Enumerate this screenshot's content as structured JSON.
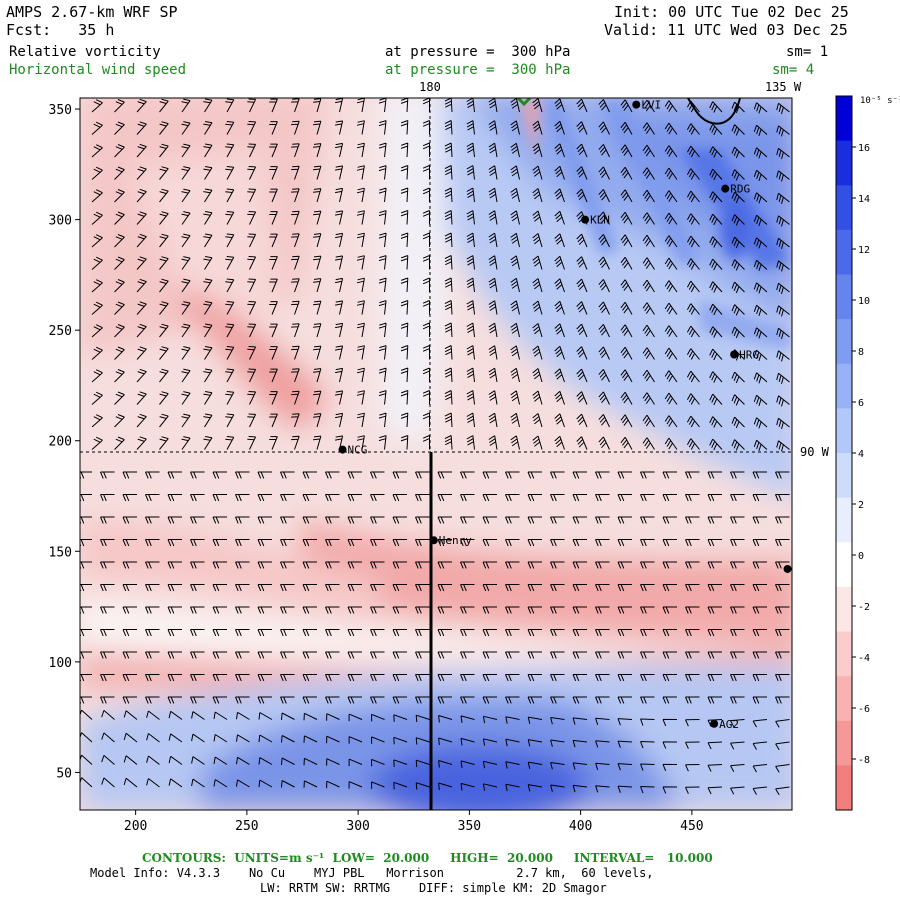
{
  "header": {
    "model": "AMPS 2.67-km WRF SP",
    "fcst": "Fcst:   35 h",
    "init": "Init: 00 UTC Tue 02 Dec 25",
    "valid": "Valid: 11 UTC Wed 03 Dec 25",
    "field1_name": "Relative vorticity",
    "field1_level": "at pressure =  300 hPa",
    "field1_sm": "sm= 1",
    "field2_name": "Horizontal wind speed",
    "field2_level": "at pressure =  300 hPa",
    "field2_sm": "sm= 4"
  },
  "map": {
    "x_ticks": [
      "200",
      "250",
      "300",
      "350",
      "400",
      "450"
    ],
    "y_ticks": [
      "50",
      "100",
      "150",
      "200",
      "250",
      "300",
      "350"
    ],
    "lon_label_180": "180",
    "lon_label_135w": "135 W",
    "lat_label_90w": "90 W",
    "stations": [
      {
        "id": "LVI",
        "x": 425,
        "y": 352
      },
      {
        "id": "RDG",
        "x": 465,
        "y": 314
      },
      {
        "id": "KLN",
        "x": 402,
        "y": 300
      },
      {
        "id": "HRG",
        "x": 469,
        "y": 239
      },
      {
        "id": "NCG",
        "x": 293,
        "y": 196
      },
      {
        "id": "Henry",
        "x": 334,
        "y": 155
      },
      {
        "id": "",
        "x": 493,
        "y": 142
      },
      {
        "id": "AG2",
        "x": 460,
        "y": 72
      }
    ]
  },
  "colorbar": {
    "unit": "10⁻⁵ s⁻¹",
    "ticks": [
      "16",
      "14",
      "12",
      "10",
      "8",
      "6",
      "4",
      "2",
      "0",
      "-2",
      "-4",
      "-6",
      "-8"
    ],
    "colors": [
      "#0000d8",
      "#1a2ee0",
      "#3350e6",
      "#4a6aea",
      "#6484ee",
      "#7d9cf2",
      "#97b3f5",
      "#b2c8f8",
      "#cddcfb",
      "#e8eefd",
      "#ffffff",
      "#fde6e6",
      "#fbcccc",
      "#f8b2b2",
      "#f59898",
      "#f27e7e"
    ]
  },
  "footer": {
    "contours": "CONTOURS:  UNITS=m s⁻¹  LOW=  20.000     HIGH=  20.000     INTERVAL=   10.000",
    "model_info": "Model Info: V4.3.3    No Cu    MYJ PBL   Morrison          2.7 km,  60 levels,",
    "physics": "LW: RRTM SW: RRTMG    DIFF: simple KM: 2D Smagor"
  }
}
